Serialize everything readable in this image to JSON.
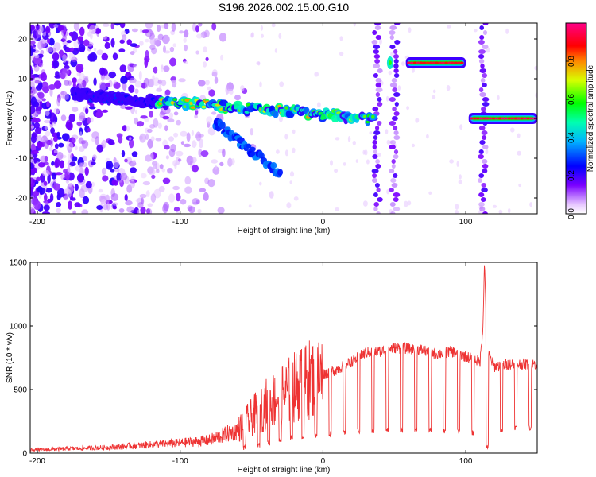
{
  "title": "S196.2026.002.15.00.G10",
  "accent_color": "#ee3333",
  "chart_data": [
    {
      "type": "heatmap",
      "name": "spectrogram",
      "xlabel": "Height of straight line (km)",
      "ylabel": "Frequency (Hz)",
      "xlim": [
        -205,
        150
      ],
      "ylim": [
        -24,
        24
      ],
      "xticks": [
        -200,
        -100,
        0,
        100
      ],
      "yticks": [
        -20,
        -10,
        0,
        10,
        20
      ],
      "colorbar": {
        "label": "Normalized spectral amplitude",
        "range": [
          0,
          1
        ],
        "ticks": [
          "0.0",
          "0.2",
          "0.4",
          "0.6",
          "0.8"
        ],
        "colormap": "rainbow (white-violet-blue-cyan-green-yellow-red-magenta)"
      },
      "ridges": [
        {
          "name": "scatter-noise",
          "x_range": [
            -205,
            -110
          ],
          "freq_range": [
            -24,
            24
          ],
          "amplitude": 0.15
        },
        {
          "name": "descending-trace",
          "x_start": -175,
          "x_end": -110,
          "freq_start": 6,
          "freq_end": 4,
          "amplitude": 0.3
        },
        {
          "name": "main-trace",
          "x_start": -115,
          "x_end": 35,
          "freq_start": 4.5,
          "freq_end": 0,
          "amplitude": 0.8
        },
        {
          "name": "offset-trace",
          "x_start": 58,
          "x_end": 100,
          "freq": 14,
          "amplitude": 0.85
        },
        {
          "name": "end-trace",
          "x_start": 102,
          "x_end": 150,
          "freq": 0,
          "amplitude": 0.9
        },
        {
          "name": "lower-branch",
          "x_start": -75,
          "x_end": -30,
          "freq_start": -1,
          "freq_end": -14,
          "amplitude": 0.25
        }
      ],
      "vertical_bands": [
        38,
        50,
        112
      ],
      "legend": "none"
    },
    {
      "type": "line",
      "name": "snr",
      "xlabel": "Height of straight line (km)",
      "ylabel": "SNR (10 * v/v)",
      "xlim": [
        -205,
        150
      ],
      "ylim": [
        0,
        1500
      ],
      "xticks": [
        -200,
        -100,
        0,
        100
      ],
      "yticks": [
        0,
        500,
        1000,
        1500
      ],
      "color": "#ee3333",
      "envelope_x": [
        -205,
        -150,
        -100,
        -80,
        -60,
        -50,
        -40,
        -30,
        -20,
        -10,
        0,
        10,
        20,
        30,
        40,
        50,
        60,
        70,
        80,
        90,
        100,
        110,
        112,
        113,
        115,
        120,
        130,
        140,
        150
      ],
      "envelope_y": [
        25,
        45,
        80,
        100,
        180,
        280,
        380,
        450,
        520,
        580,
        620,
        660,
        720,
        790,
        800,
        830,
        820,
        810,
        780,
        800,
        760,
        720,
        1000,
        1500,
        800,
        680,
        700,
        700,
        700
      ],
      "dropouts_x": [
        -55,
        -45,
        -38,
        -30,
        -22,
        -14,
        -5,
        5,
        15,
        25,
        35,
        45,
        55,
        65,
        75,
        85,
        95,
        105,
        115,
        125,
        135,
        145
      ],
      "dropouts_y": [
        20,
        40,
        60,
        80,
        100,
        110,
        120,
        130,
        140,
        150,
        150,
        160,
        160,
        170,
        160,
        150,
        150,
        140,
        30,
        150,
        180,
        180
      ],
      "legend": "none"
    }
  ]
}
